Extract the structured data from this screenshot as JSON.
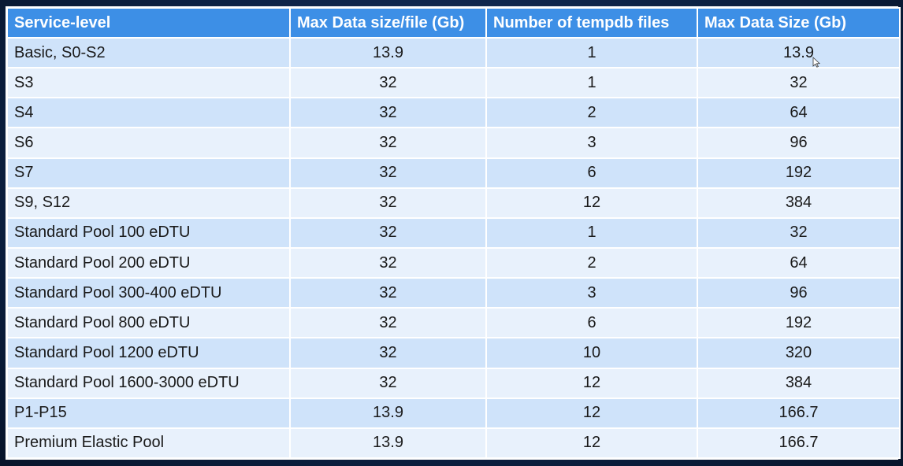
{
  "table": {
    "headers": [
      "Service-level",
      "Max Data size/file (Gb)",
      "Number of tempdb files",
      "Max Data Size (Gb)"
    ],
    "rows": [
      [
        "Basic, S0-S2",
        "13.9",
        "1",
        "13.9"
      ],
      [
        "S3",
        "32",
        "1",
        "32"
      ],
      [
        "S4",
        "32",
        "2",
        "64"
      ],
      [
        "S6",
        "32",
        "3",
        "96"
      ],
      [
        "S7",
        "32",
        "6",
        "192"
      ],
      [
        "S9, S12",
        "32",
        "12",
        "384"
      ],
      [
        "Standard Pool 100 eDTU",
        "32",
        "1",
        "32"
      ],
      [
        "Standard Pool 200 eDTU",
        "32",
        "2",
        "64"
      ],
      [
        "Standard Pool 300-400 eDTU",
        "32",
        "3",
        "96"
      ],
      [
        "Standard Pool 800 eDTU",
        "32",
        "6",
        "192"
      ],
      [
        "Standard Pool 1200 eDTU",
        "32",
        "10",
        "320"
      ],
      [
        "Standard Pool 1600-3000 eDTU",
        "32",
        "12",
        "384"
      ],
      [
        "P1-P15",
        "13.9",
        "12",
        "166.7"
      ],
      [
        "Premium Elastic Pool",
        "13.9",
        "12",
        "166.7"
      ]
    ]
  },
  "colors": {
    "header_bg": "#3d8fe6",
    "row_odd": "#cfe3fa",
    "row_even": "#e8f1fc"
  },
  "icons": {
    "cursor": "mouse-pointer-icon"
  }
}
